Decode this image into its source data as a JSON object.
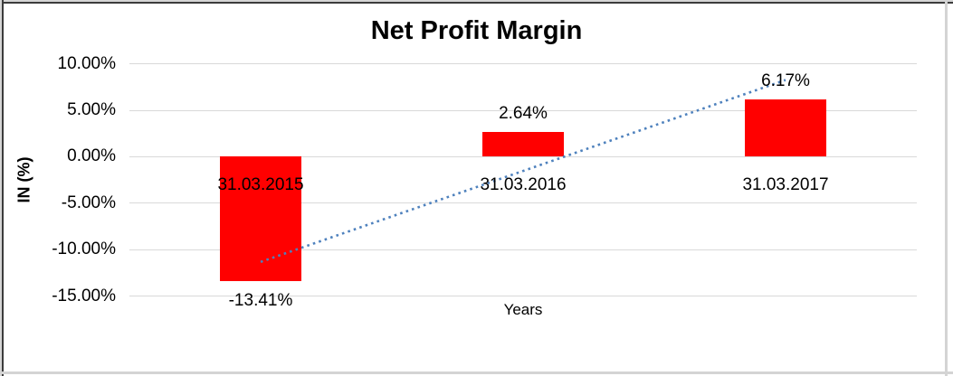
{
  "chart_data": {
    "type": "bar",
    "title": "Net Profit Margin",
    "xlabel": "Years",
    "ylabel": "IN (%)",
    "categories": [
      "31.03.2015",
      "31.03.2016",
      "31.03.2017"
    ],
    "values": [
      -13.41,
      2.64,
      6.17
    ],
    "data_labels": [
      "-13.41%",
      "2.64%",
      "6.17%"
    ],
    "yticks": [
      {
        "label": "10.00%",
        "value": 10
      },
      {
        "label": "5.00%",
        "value": 5
      },
      {
        "label": "0.00%",
        "value": 0
      },
      {
        "label": "-5.00%",
        "value": -5
      },
      {
        "label": "-10.00%",
        "value": -10
      },
      {
        "label": "-15.00%",
        "value": -15
      }
    ],
    "ylim": [
      -15,
      10
    ],
    "grid": true,
    "legend": "none",
    "bar_color": "#FF0000",
    "grid_color": "#D9D9D9",
    "text_color": "#000000",
    "trendline": {
      "type": "linear",
      "style": "dotted",
      "color": "#4E81BD",
      "start_value": -11.32,
      "end_value": 8.26
    }
  }
}
